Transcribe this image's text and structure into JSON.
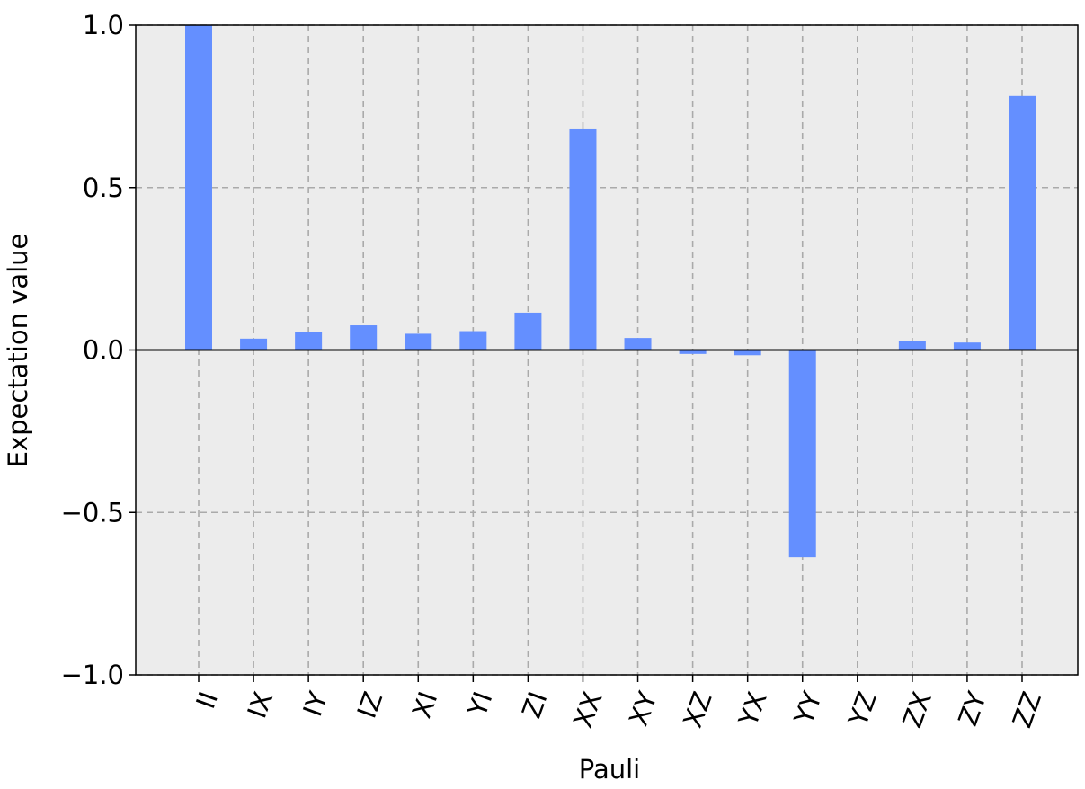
{
  "chart_data": {
    "type": "bar",
    "xlabel": "Pauli",
    "ylabel": "Expectation value",
    "ylim": [
      -1.0,
      1.0
    ],
    "yticks": [
      1.0,
      0.5,
      0.0,
      -0.5,
      -1.0
    ],
    "ytick_labels": [
      "1.0",
      "0.5",
      "0.0",
      "−0.5",
      "−1.0"
    ],
    "categories": [
      "II",
      "IX",
      "IY",
      "IZ",
      "XI",
      "YI",
      "ZI",
      "XX",
      "XY",
      "XZ",
      "YX",
      "YY",
      "YZ",
      "ZX",
      "ZY",
      "ZZ"
    ],
    "values": [
      1.0,
      0.035,
      0.054,
      0.076,
      0.05,
      0.058,
      0.115,
      0.682,
      0.037,
      -0.012,
      -0.016,
      -0.638,
      0.0,
      0.027,
      0.023,
      0.782
    ],
    "grid": true,
    "bar_color": "#648fff",
    "background_color": "#ececec",
    "grid_color": "#aaaaaa"
  }
}
